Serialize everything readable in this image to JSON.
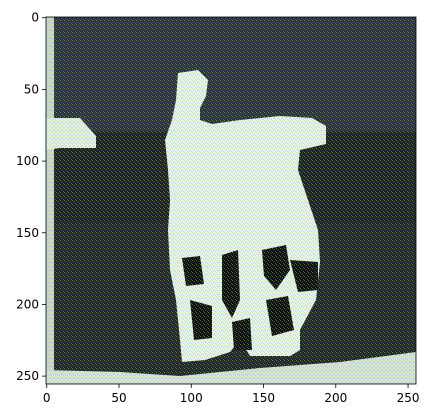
{
  "figure": {
    "title": "",
    "xlabel": "",
    "ylabel": ""
  },
  "image_extent": {
    "x_min": -0.5,
    "x_max": 255.5,
    "y_min": -0.5,
    "y_max": 255.5,
    "y_inverted": true
  },
  "x_ticks": [
    {
      "value": 0,
      "label": "0"
    },
    {
      "value": 50,
      "label": "50"
    },
    {
      "value": 100,
      "label": "100"
    },
    {
      "value": 150,
      "label": "150"
    },
    {
      "value": 200,
      "label": "200"
    },
    {
      "value": 250,
      "label": "250"
    }
  ],
  "y_ticks": [
    {
      "value": 0,
      "label": "0"
    },
    {
      "value": 50,
      "label": "50"
    },
    {
      "value": 100,
      "label": "100"
    },
    {
      "value": 150,
      "label": "150"
    },
    {
      "value": 200,
      "label": "200"
    },
    {
      "value": 250,
      "label": "250"
    }
  ],
  "colors": {
    "background": "#2a2f3e",
    "subject": "#e6f1f2",
    "subject_shadow": "#0e1016",
    "frame": "#000000"
  },
  "image_description_icon": "white-animal-statue-on-dark-background"
}
